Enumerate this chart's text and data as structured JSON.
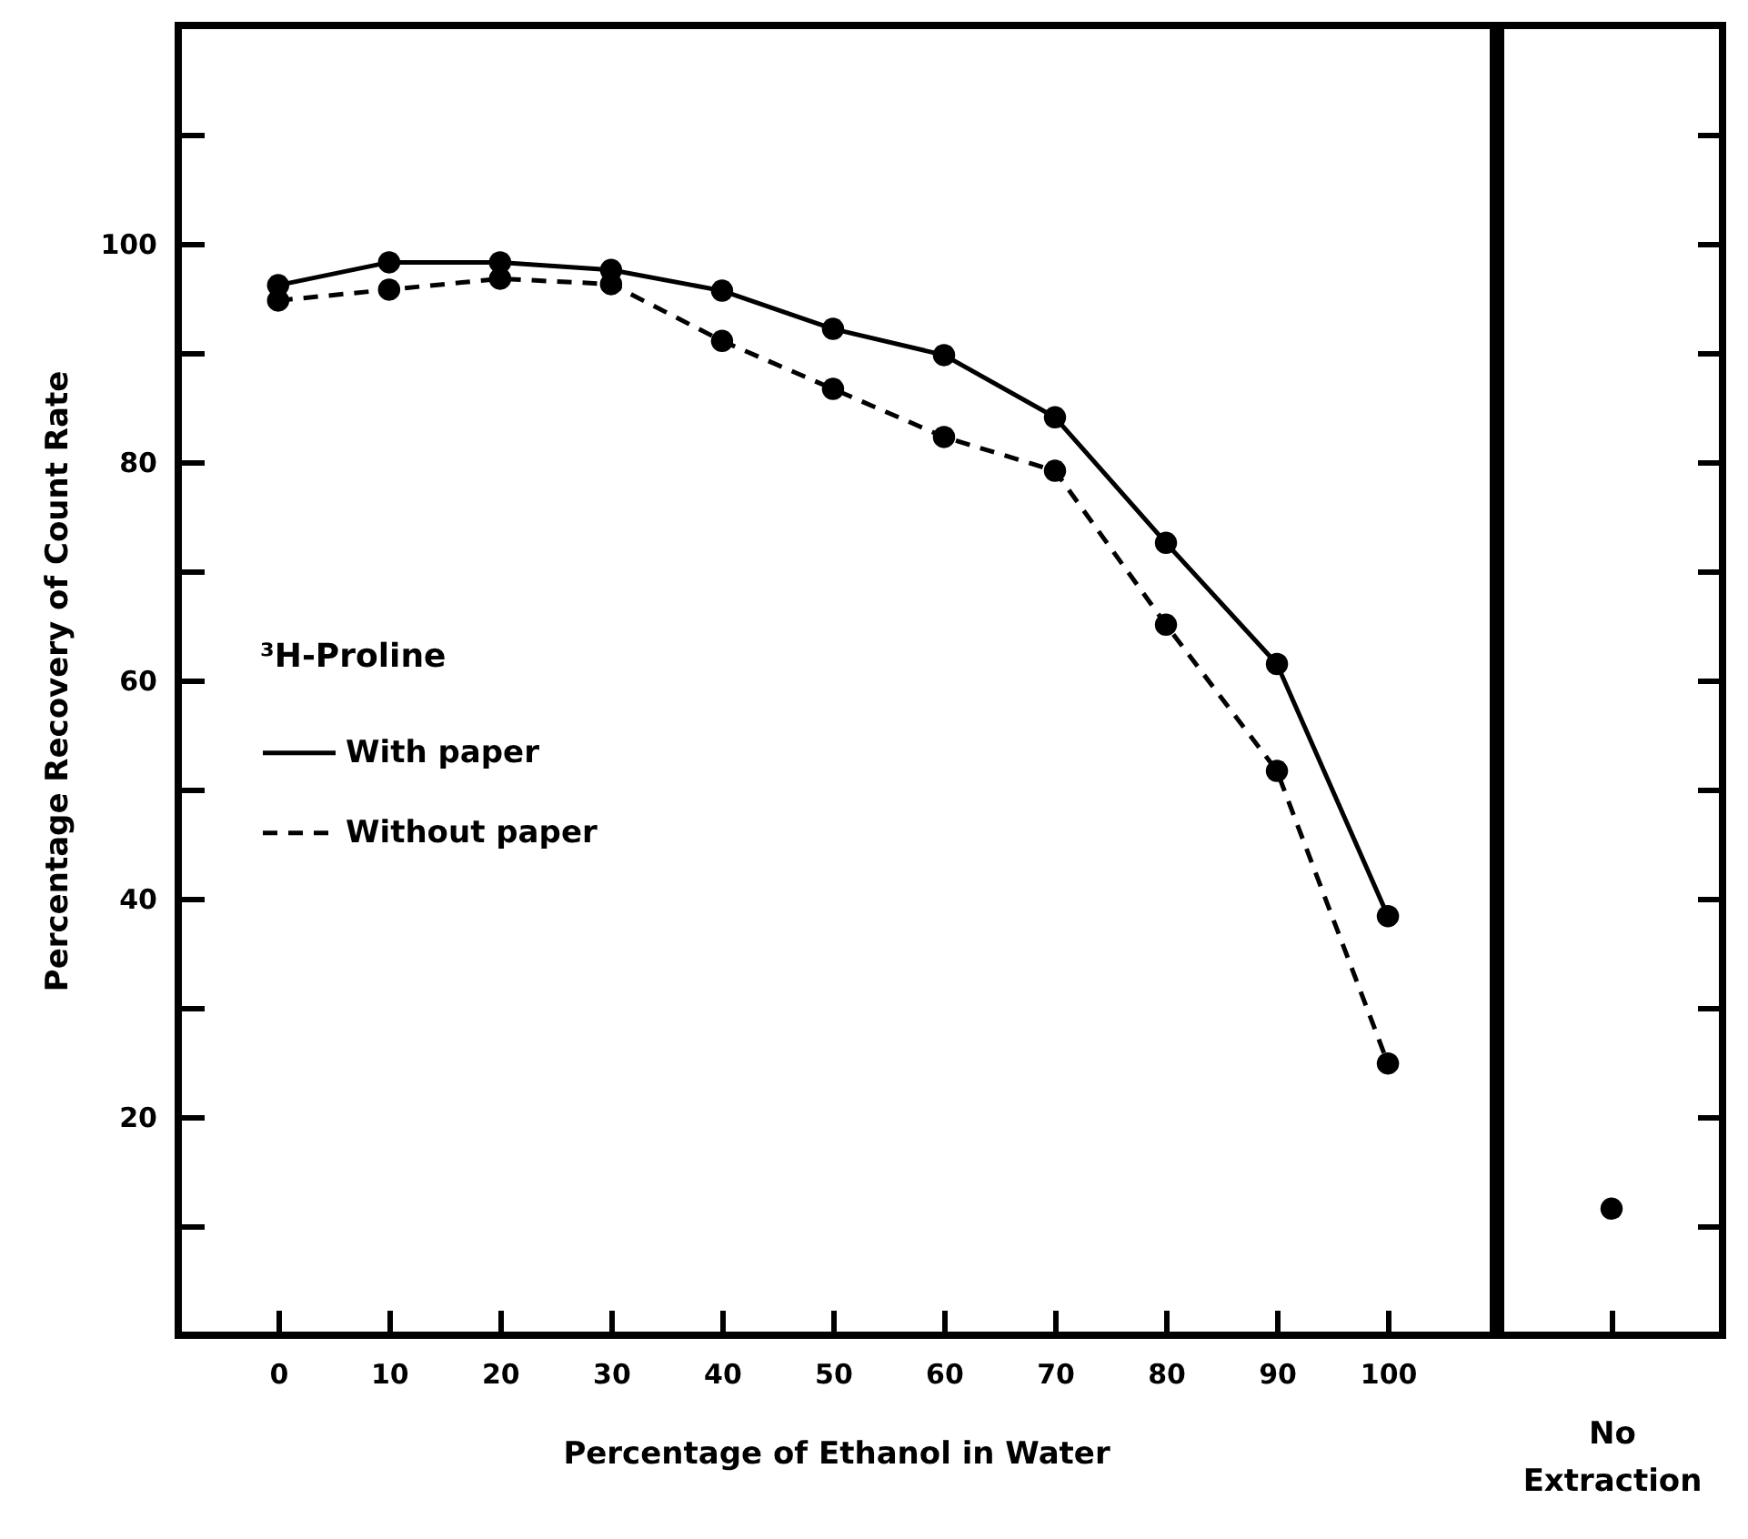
{
  "chart_data": [
    {
      "type": "line",
      "xlabel": "Percentage of Ethanol in Water",
      "ylabel": "Percentage Recovery of Count Rate",
      "legend_title": "³H-Proline",
      "legend": "left",
      "marker": "circle",
      "x": [
        0,
        10,
        20,
        30,
        40,
        50,
        60,
        70,
        80,
        90,
        100
      ],
      "series": [
        {
          "name": "With paper",
          "color": "#000000",
          "line_style": "solid",
          "values": [
            96.2,
            98.3,
            98.3,
            97.6,
            95.7,
            92.2,
            89.8,
            84.1,
            72.6,
            61.5,
            38.4
          ]
        },
        {
          "name": "Without paper",
          "color": "#000000",
          "line_style": "dashed",
          "values": [
            94.8,
            95.8,
            96.8,
            96.3,
            91.1,
            86.7,
            82.3,
            79.2,
            65.1,
            51.7,
            24.9
          ]
        }
      ],
      "xlim": [
        -9,
        109.5
      ],
      "xticks": [
        0,
        10,
        20,
        30,
        40,
        50,
        60,
        70,
        80,
        90,
        100
      ],
      "ylim": [
        0,
        120
      ],
      "yticks": [
        {
          "value": 10,
          "label": null
        },
        20,
        {
          "value": 30,
          "label": null
        },
        40,
        {
          "value": 50,
          "label": null
        },
        60,
        {
          "value": 70,
          "label": null
        },
        80,
        {
          "value": 90,
          "label": null
        },
        100,
        {
          "value": 110,
          "label": null
        }
      ]
    },
    {
      "type": "scatter",
      "categories": [
        "No Extraction"
      ],
      "values": [
        11.6
      ],
      "marker": "circle",
      "tick_labels": "x",
      "ylim": [
        0,
        120
      ],
      "yticks": [
        {
          "value": 10,
          "label": null
        },
        {
          "value": 20,
          "label": null
        },
        {
          "value": 30,
          "label": null
        },
        {
          "value": 40,
          "label": null
        },
        {
          "value": 50,
          "label": null
        },
        {
          "value": 60,
          "label": null
        },
        {
          "value": 70,
          "label": null
        },
        {
          "value": 80,
          "label": null
        },
        {
          "value": 90,
          "label": null
        },
        {
          "value": 100,
          "label": null
        },
        {
          "value": 110,
          "label": null
        }
      ]
    }
  ]
}
